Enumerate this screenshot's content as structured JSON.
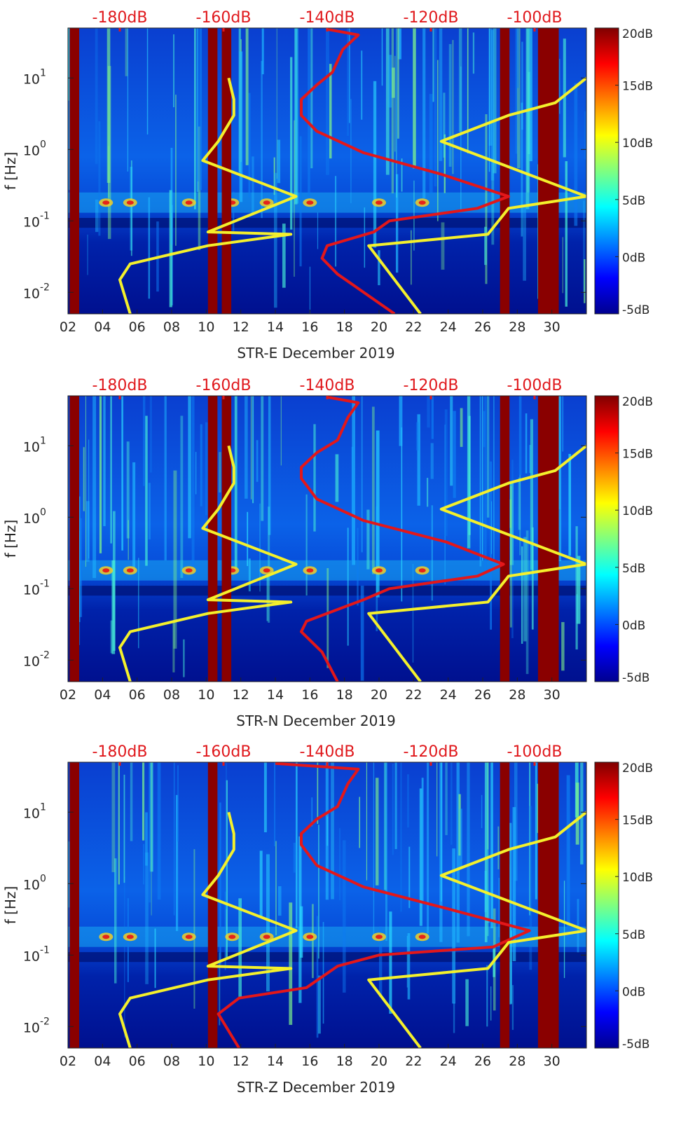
{
  "figure": {
    "colors": {
      "db_top_labels": "#e0181c",
      "red_curve": "#e3171a",
      "yellow_curve": "#f4f02c",
      "background_dark": "#00008f",
      "background_mid": "#0a4fd6"
    }
  },
  "chart_data": [
    {
      "type": "heatmap",
      "title": "STR-E December 2019",
      "xlabel": "STR-E December 2019",
      "ylabel": "f [Hz]",
      "x_ticks": [
        "02",
        "04",
        "06",
        "08",
        "10",
        "12",
        "14",
        "16",
        "18",
        "20",
        "22",
        "24",
        "26",
        "28",
        "30"
      ],
      "x_range": [
        2,
        32
      ],
      "y_range": [
        0.005,
        50
      ],
      "y_scale": "log",
      "y_ticks": [
        "10^1",
        "10^0",
        "10^-1",
        "10^-2"
      ],
      "top_axis": {
        "ticks": [
          "-180dB",
          "-160dB",
          "-140dB",
          "-120dB",
          "-100dB"
        ],
        "range_db": [
          -190,
          -90
        ]
      },
      "colorbar": {
        "ticks": [
          "20dB",
          "15dB",
          "10dB",
          "5dB",
          "0dB",
          "-5dB"
        ],
        "range_db": [
          -5,
          20
        ]
      },
      "saturated_days": [
        2.1,
        10.1,
        10.9,
        27.0,
        29.2,
        30.1
      ],
      "series": [
        {
          "name": "red model curve",
          "color": "red",
          "points": [
            [
              -127,
              0.005
            ],
            [
              -138,
              0.018
            ],
            [
              -141,
              0.03
            ],
            [
              -140,
              0.045
            ],
            [
              -131,
              0.07
            ],
            [
              -128,
              0.1
            ],
            [
              -111,
              0.15
            ],
            [
              -105,
              0.22
            ],
            [
              -118,
              0.45
            ],
            [
              -133,
              0.9
            ],
            [
              -142,
              1.8
            ],
            [
              -145,
              3
            ],
            [
              -145,
              5
            ],
            [
              -142,
              8
            ],
            [
              -139,
              12
            ],
            [
              -137,
              25
            ],
            [
              -134,
              40
            ],
            [
              -140,
              48
            ]
          ]
        },
        {
          "name": "yellow model curve",
          "color": "yellow",
          "points": [
            [
              -178,
              0.005
            ],
            [
              -180,
              0.015
            ],
            [
              -178,
              0.025
            ],
            [
              -163,
              0.045
            ],
            [
              -147,
              0.065
            ],
            [
              -163,
              0.07
            ],
            [
              -146,
              0.22
            ],
            [
              -164,
              0.7
            ],
            [
              -161,
              1.3
            ],
            [
              -158,
              3
            ],
            [
              -158,
              5
            ],
            [
              -159,
              10
            ]
          ]
        },
        {
          "name": "yellow model curve 2",
          "color": "yellow",
          "points": [
            [
              -122,
              0.005
            ],
            [
              -132,
              0.045
            ],
            [
              -109,
              0.065
            ],
            [
              -105,
              0.15
            ],
            [
              -90,
              0.22
            ],
            [
              -118,
              1.3
            ],
            [
              -105,
              3
            ],
            [
              -96,
              4.5
            ],
            [
              -90,
              10
            ]
          ]
        }
      ]
    },
    {
      "type": "heatmap",
      "title": "STR-N December 2019",
      "xlabel": "STR-N December 2019",
      "ylabel": "f [Hz]",
      "x_ticks": [
        "02",
        "04",
        "06",
        "08",
        "10",
        "12",
        "14",
        "16",
        "18",
        "20",
        "22",
        "24",
        "26",
        "28",
        "30"
      ],
      "x_range": [
        2,
        32
      ],
      "y_range": [
        0.005,
        50
      ],
      "y_scale": "log",
      "y_ticks": [
        "10^1",
        "10^0",
        "10^-1",
        "10^-2"
      ],
      "top_axis": {
        "ticks": [
          "-180dB",
          "-160dB",
          "-140dB",
          "-120dB",
          "-100dB"
        ],
        "range_db": [
          -190,
          -90
        ]
      },
      "colorbar": {
        "ticks": [
          "20dB",
          "15dB",
          "10dB",
          "5dB",
          "0dB",
          "-5dB"
        ],
        "range_db": [
          -5,
          20
        ]
      },
      "saturated_days": [
        2.1,
        10.1,
        10.9,
        27.0,
        29.2,
        30.1
      ],
      "series": [
        {
          "name": "red model curve",
          "color": "red",
          "points": [
            [
              -138,
              0.005
            ],
            [
              -141,
              0.013
            ],
            [
              -145,
              0.025
            ],
            [
              -144,
              0.035
            ],
            [
              -133,
              0.07
            ],
            [
              -128,
              0.1
            ],
            [
              -111,
              0.15
            ],
            [
              -106,
              0.22
            ],
            [
              -117,
              0.45
            ],
            [
              -133,
              0.9
            ],
            [
              -142,
              1.8
            ],
            [
              -145,
              3.5
            ],
            [
              -145,
              5
            ],
            [
              -142,
              8
            ],
            [
              -138,
              12
            ],
            [
              -136,
              25
            ],
            [
              -134,
              40
            ],
            [
              -140,
              48
            ]
          ]
        },
        {
          "name": "yellow model curve",
          "color": "yellow",
          "points": [
            [
              -178,
              0.005
            ],
            [
              -180,
              0.015
            ],
            [
              -178,
              0.025
            ],
            [
              -163,
              0.045
            ],
            [
              -147,
              0.065
            ],
            [
              -163,
              0.07
            ],
            [
              -146,
              0.22
            ],
            [
              -164,
              0.7
            ],
            [
              -161,
              1.3
            ],
            [
              -158,
              3
            ],
            [
              -158,
              5
            ],
            [
              -159,
              10
            ]
          ]
        },
        {
          "name": "yellow model curve 2",
          "color": "yellow",
          "points": [
            [
              -122,
              0.005
            ],
            [
              -132,
              0.045
            ],
            [
              -109,
              0.065
            ],
            [
              -105,
              0.15
            ],
            [
              -90,
              0.22
            ],
            [
              -118,
              1.3
            ],
            [
              -105,
              3
            ],
            [
              -96,
              4.5
            ],
            [
              -90,
              10
            ]
          ]
        }
      ]
    },
    {
      "type": "heatmap",
      "title": "STR-Z December 2019",
      "xlabel": "STR-Z December 2019",
      "ylabel": "f [Hz]",
      "x_ticks": [
        "02",
        "04",
        "06",
        "08",
        "10",
        "12",
        "14",
        "16",
        "18",
        "20",
        "22",
        "24",
        "26",
        "28",
        "30"
      ],
      "x_range": [
        2,
        32
      ],
      "y_range": [
        0.005,
        50
      ],
      "y_scale": "log",
      "y_ticks": [
        "10^1",
        "10^0",
        "10^-1",
        "10^-2"
      ],
      "top_axis": {
        "ticks": [
          "-180dB",
          "-160dB",
          "-140dB",
          "-120dB",
          "-100dB"
        ],
        "range_db": [
          -190,
          -90
        ]
      },
      "colorbar": {
        "ticks": [
          "20dB",
          "15dB",
          "10dB",
          "5dB",
          "0dB",
          "-5dB"
        ],
        "range_db": [
          -5,
          20
        ]
      },
      "saturated_days": [
        2.1,
        10.1,
        27.0,
        29.2,
        30.1
      ],
      "series": [
        {
          "name": "red model curve",
          "color": "red",
          "points": [
            [
              -157,
              0.005
            ],
            [
              -161,
              0.015
            ],
            [
              -157,
              0.025
            ],
            [
              -144,
              0.035
            ],
            [
              -138,
              0.07
            ],
            [
              -130,
              0.1
            ],
            [
              -108,
              0.13
            ],
            [
              -101,
              0.22
            ],
            [
              -117,
              0.45
            ],
            [
              -133,
              0.9
            ],
            [
              -142,
              1.8
            ],
            [
              -145,
              3.5
            ],
            [
              -145,
              5
            ],
            [
              -142,
              8
            ],
            [
              -138,
              12
            ],
            [
              -136,
              25
            ],
            [
              -134,
              40
            ],
            [
              -150,
              48
            ]
          ]
        },
        {
          "name": "yellow model curve",
          "color": "yellow",
          "points": [
            [
              -178,
              0.005
            ],
            [
              -180,
              0.015
            ],
            [
              -178,
              0.025
            ],
            [
              -163,
              0.045
            ],
            [
              -147,
              0.065
            ],
            [
              -163,
              0.07
            ],
            [
              -146,
              0.22
            ],
            [
              -164,
              0.7
            ],
            [
              -161,
              1.3
            ],
            [
              -158,
              3
            ],
            [
              -158,
              5
            ],
            [
              -159,
              10
            ]
          ]
        },
        {
          "name": "yellow model curve 2",
          "color": "yellow",
          "points": [
            [
              -122,
              0.005
            ],
            [
              -132,
              0.045
            ],
            [
              -109,
              0.065
            ],
            [
              -105,
              0.15
            ],
            [
              -90,
              0.22
            ],
            [
              -118,
              1.3
            ],
            [
              -105,
              3
            ],
            [
              -96,
              4.5
            ],
            [
              -90,
              10
            ]
          ]
        }
      ]
    }
  ]
}
